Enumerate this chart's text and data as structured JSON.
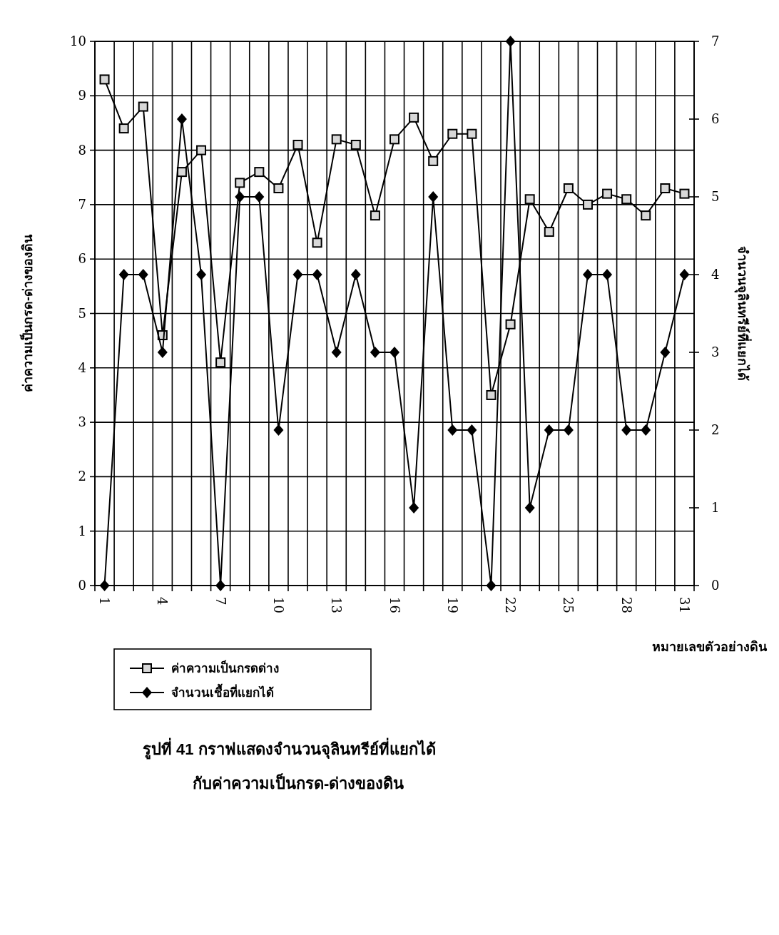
{
  "chart_data": {
    "type": "line",
    "title": "รูปที่ 41  กราฟแสดงจำนวนจุลินทรีย์ที่แยกได้\nกับค่าความเป็นกรด-ด่างของดิน",
    "xlabel": "หมายเลขตัวอย่างดิน",
    "ylabel": "ค่าความเป็นกรด-ด่างของดิน",
    "y2label": "จำนวนจุลินทรีย์ที่แยกได้",
    "categories": [
      "1",
      null,
      null,
      "4",
      null,
      null,
      "7",
      null,
      null,
      "10",
      null,
      null,
      "13",
      null,
      null,
      "16",
      null,
      null,
      "19",
      null,
      null,
      "22",
      null,
      null,
      "25",
      null,
      null,
      "28",
      null,
      null,
      "31"
    ],
    "ylim": [
      0,
      10
    ],
    "yticks": [
      0,
      1,
      2,
      3,
      4,
      5,
      6,
      7,
      8,
      9,
      10
    ],
    "y2lim": [
      0,
      7
    ],
    "y2ticks": [
      0,
      1,
      2,
      3,
      4,
      5,
      6,
      7
    ],
    "grid": true,
    "legend": "bottom left",
    "series": [
      {
        "name": "ค่าความเป็นกรดด่าง",
        "color": "#000000",
        "marker": "square",
        "values": [
          9.3,
          8.4,
          8.8,
          4.6,
          7.6,
          8.0,
          4.1,
          7.4,
          7.6,
          7.3,
          8.1,
          6.3,
          8.2,
          8.1,
          6.8,
          8.2,
          8.6,
          7.8,
          8.3,
          8.3,
          3.5,
          4.8,
          7.1,
          6.5,
          7.3,
          7.0,
          7.2,
          7.1,
          6.8,
          7.3,
          7.2
        ]
      },
      {
        "name": "จำนวนเชื้อที่แยกได้",
        "color": "#000000",
        "marker": "diamond",
        "axis": "y2",
        "values": [
          0,
          4,
          4,
          3,
          6,
          4,
          0,
          5,
          5,
          2,
          4,
          4,
          3,
          4,
          3,
          3,
          1,
          5,
          2,
          2,
          0,
          7,
          1,
          2,
          2,
          4,
          4,
          2,
          2,
          3,
          4
        ]
      }
    ]
  }
}
